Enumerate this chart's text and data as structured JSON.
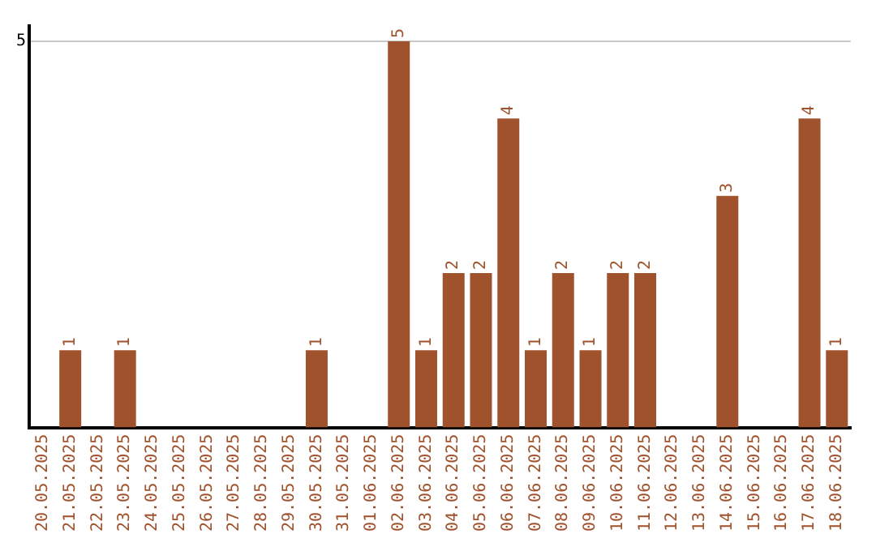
{
  "chart_data": {
    "type": "bar",
    "categories": [
      "20.05.2025",
      "21.05.2025",
      "22.05.2025",
      "23.05.2025",
      "24.05.2025",
      "25.05.2025",
      "26.05.2025",
      "27.05.2025",
      "28.05.2025",
      "29.05.2025",
      "30.05.2025",
      "31.05.2025",
      "01.06.2025",
      "02.06.2025",
      "03.06.2025",
      "04.06.2025",
      "05.06.2025",
      "06.06.2025",
      "07.06.2025",
      "08.06.2025",
      "09.06.2025",
      "10.06.2025",
      "11.06.2025",
      "12.06.2025",
      "13.06.2025",
      "14.06.2025",
      "15.06.2025",
      "16.06.2025",
      "17.06.2025",
      "18.06.2025"
    ],
    "values": [
      0,
      1,
      0,
      1,
      0,
      0,
      0,
      0,
      0,
      0,
      1,
      0,
      0,
      5,
      1,
      2,
      2,
      4,
      1,
      2,
      1,
      2,
      2,
      0,
      0,
      3,
      0,
      0,
      4,
      1
    ],
    "value_labels": [
      null,
      "1",
      null,
      "1",
      null,
      null,
      null,
      null,
      null,
      null,
      "1",
      null,
      null,
      "5",
      "1",
      "2",
      "2",
      "4",
      "1",
      "2",
      "1",
      "2",
      "2",
      null,
      null,
      "3",
      null,
      null,
      "4",
      "1"
    ],
    "color": "#a0522d",
    "ylim": [
      0,
      5.2
    ],
    "yticks": [
      5
    ],
    "grid": "y",
    "legend": false
  }
}
